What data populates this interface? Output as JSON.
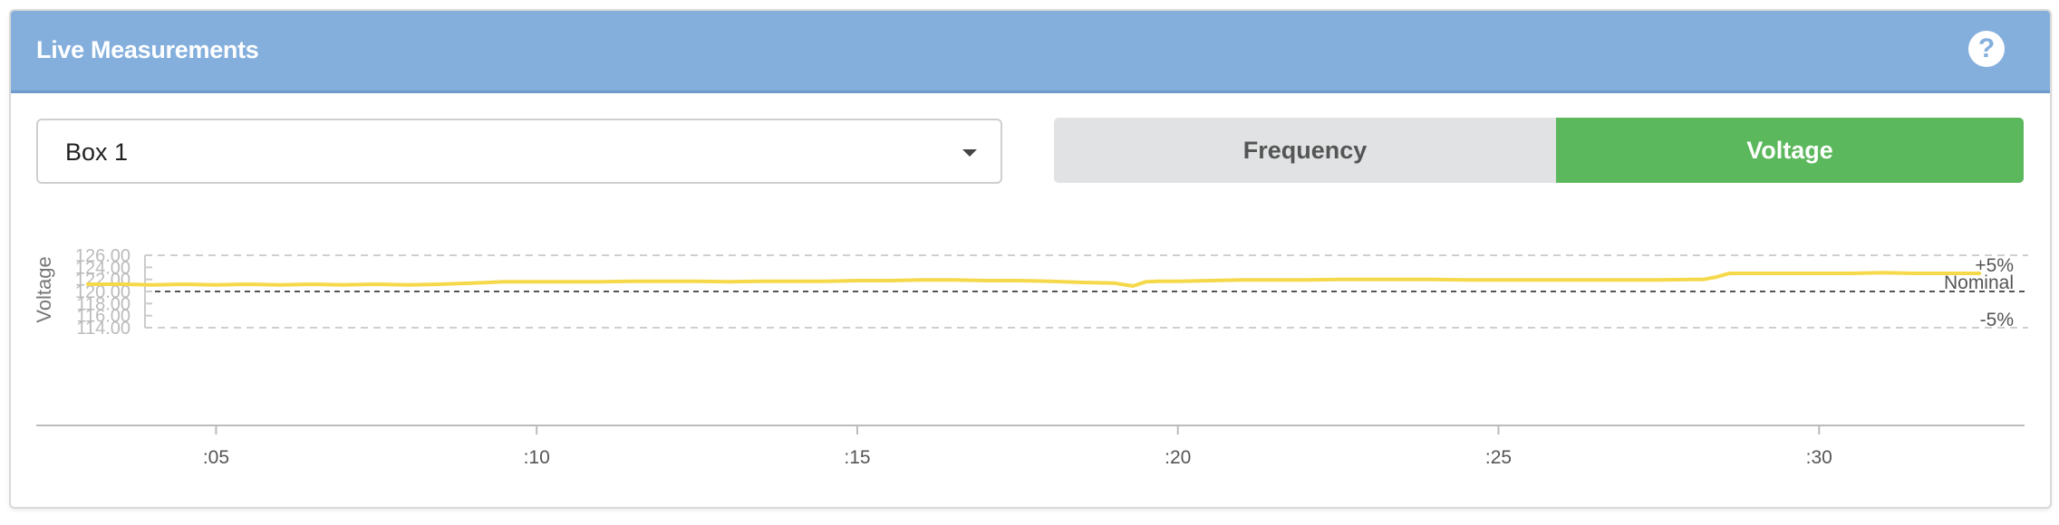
{
  "panel": {
    "title": "Live Measurements",
    "help_icon": "question-circle-icon"
  },
  "controls": {
    "box_select": {
      "value": "Box 1",
      "icon": "caret-down-icon"
    },
    "toggles": [
      {
        "label": "Frequency",
        "active": false
      },
      {
        "label": "Voltage",
        "active": true,
        "color": "#5cb85c"
      }
    ]
  },
  "colors": {
    "header": "#84afdd",
    "active_toggle": "#5cb85c",
    "series_line": "#f5d94a"
  },
  "chart_data": {
    "type": "line",
    "ylabel": "Voltage",
    "ylim": [
      114,
      126
    ],
    "yticks": [
      "126.00",
      "124.00",
      "122.00",
      "120.00",
      "118.00",
      "116.00",
      "114.00"
    ],
    "xlim": [
      1.8,
      33.6
    ],
    "xticks": [
      {
        "value": 5,
        "label": ":05"
      },
      {
        "value": 10,
        "label": ":10"
      },
      {
        "value": 15,
        "label": ":15"
      },
      {
        "value": 20,
        "label": ":20"
      },
      {
        "value": 25,
        "label": ":25"
      },
      {
        "value": 30,
        "label": ":30"
      }
    ],
    "reference_lines": [
      {
        "label": "+5%",
        "value": 126
      },
      {
        "label": "Nominal",
        "value": 120
      },
      {
        "label": "-5%",
        "value": 114
      }
    ],
    "series": [
      {
        "x": [
          3.0,
          3.6,
          4.0,
          4.5,
          5.0,
          5.5,
          6.0,
          6.5,
          7.0,
          7.5,
          8.0,
          8.5,
          9.0,
          9.5,
          10.0,
          10.5,
          11.0,
          11.5,
          12.0,
          12.5,
          13.0,
          13.5,
          14.0,
          14.5,
          15.0,
          15.5,
          16.0,
          16.5,
          17.0,
          17.5,
          18.0,
          18.5,
          19.0,
          19.3,
          19.5,
          19.7,
          20.0,
          20.5,
          21.0,
          21.5,
          22.0,
          22.5,
          23.0,
          23.5,
          24.0,
          24.5,
          25.0,
          25.5,
          26.0,
          26.5,
          27.0,
          27.5,
          28.0,
          28.2,
          28.4,
          28.6,
          29.0,
          29.5,
          30.0,
          30.5,
          31.0,
          31.5,
          32.0,
          32.5
        ],
        "y": [
          121.2,
          121.2,
          121.1,
          121.2,
          121.1,
          121.2,
          121.1,
          121.2,
          121.1,
          121.2,
          121.1,
          121.2,
          121.4,
          121.6,
          121.6,
          121.6,
          121.6,
          121.7,
          121.7,
          121.7,
          121.6,
          121.7,
          121.7,
          121.7,
          121.8,
          121.8,
          121.9,
          121.9,
          121.8,
          121.8,
          121.7,
          121.5,
          121.4,
          120.9,
          121.6,
          121.7,
          121.7,
          121.8,
          121.9,
          121.9,
          121.9,
          122.0,
          122.0,
          122.0,
          122.0,
          121.9,
          121.9,
          121.9,
          121.9,
          121.9,
          121.9,
          121.9,
          122.0,
          122.0,
          122.4,
          123.0,
          123.0,
          123.0,
          123.0,
          123.0,
          123.1,
          123.0,
          123.0,
          123.0
        ]
      }
    ]
  }
}
